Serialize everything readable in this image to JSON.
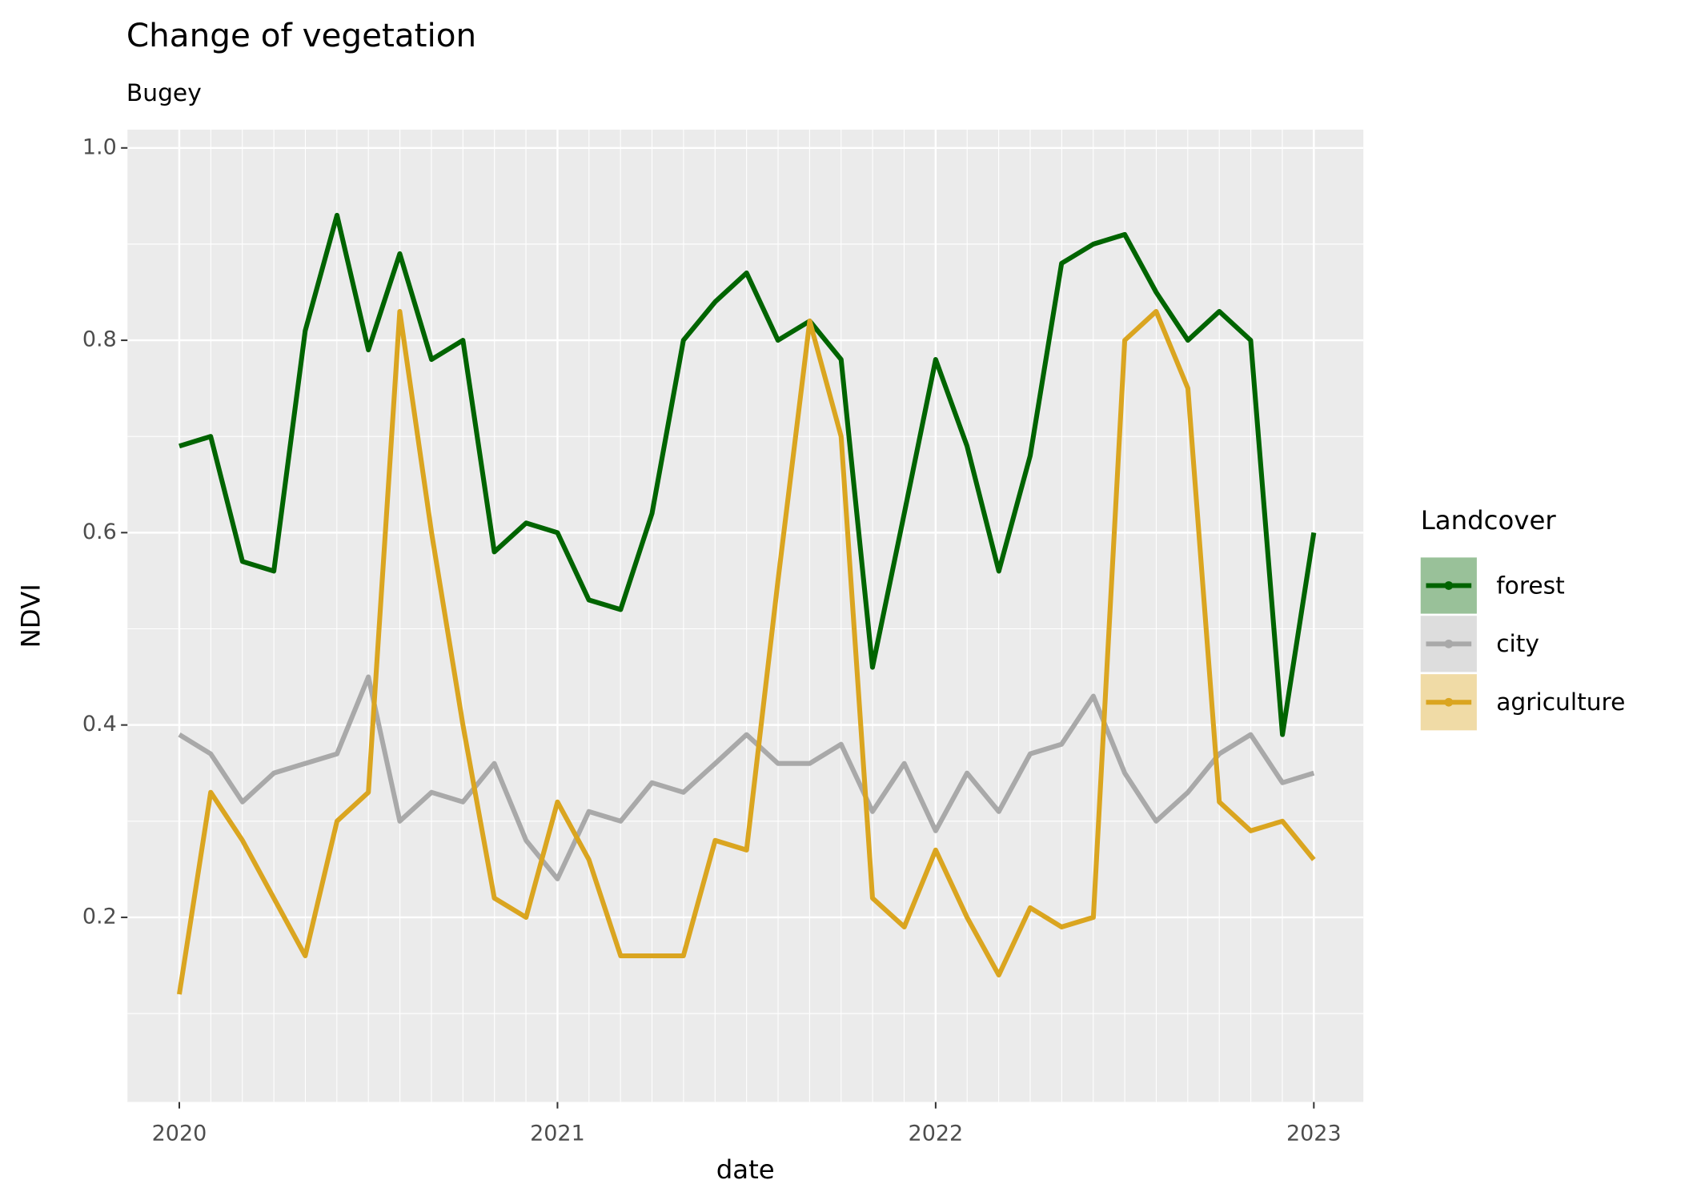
{
  "chart_data": {
    "type": "line",
    "title": "Change of vegetation",
    "subtitle": "Bugey",
    "x_label": "date",
    "y_label": "NDVI",
    "legend_title": "Landcover",
    "legend_position": "right",
    "grid": true,
    "x": [
      2020,
      2020.083,
      2020.167,
      2020.25,
      2020.333,
      2020.417,
      2020.5,
      2020.583,
      2020.667,
      2020.75,
      2020.833,
      2020.917,
      2021,
      2021.083,
      2021.167,
      2021.25,
      2021.333,
      2021.417,
      2021.5,
      2021.583,
      2021.667,
      2021.75,
      2021.833,
      2021.917,
      2022,
      2022.083,
      2022.167,
      2022.25,
      2022.333,
      2022.417,
      2022.5,
      2022.583,
      2022.667,
      2022.75,
      2022.833,
      2022.917,
      2023
    ],
    "xlim": [
      2019.863,
      2023.131
    ],
    "xticks": [
      2020,
      2021,
      2022,
      2023
    ],
    "ylim": [
      0.008,
      1.019
    ],
    "yticks": [
      0.2,
      0.4,
      0.6,
      0.8,
      {
        "value": 1.0,
        "label": "1.0"
      }
    ],
    "series": [
      {
        "name": "forest",
        "color": "#006400",
        "values": [
          0.69,
          0.7,
          0.57,
          0.56,
          0.81,
          0.93,
          0.79,
          0.89,
          0.78,
          0.8,
          0.58,
          0.61,
          0.6,
          0.53,
          0.52,
          0.62,
          0.8,
          0.84,
          0.87,
          0.8,
          0.82,
          0.78,
          0.46,
          0.62,
          0.78,
          0.69,
          0.56,
          0.68,
          0.88,
          0.9,
          0.91,
          0.85,
          0.8,
          0.83,
          0.8,
          0.39,
          0.6
        ]
      },
      {
        "name": "city",
        "color": "#a9a9a9",
        "values": [
          0.39,
          0.37,
          0.32,
          0.35,
          0.36,
          0.37,
          0.45,
          0.3,
          0.33,
          0.32,
          0.36,
          0.28,
          0.24,
          0.31,
          0.3,
          0.34,
          0.33,
          0.36,
          0.39,
          0.36,
          0.36,
          0.38,
          0.31,
          0.36,
          0.29,
          0.35,
          0.31,
          0.37,
          0.38,
          0.43,
          0.35,
          0.3,
          0.33,
          0.37,
          0.39,
          0.34,
          0.35
        ]
      },
      {
        "name": "agriculture",
        "color": "#daa520",
        "values": [
          0.12,
          0.33,
          0.28,
          0.22,
          0.16,
          0.3,
          0.33,
          0.83,
          0.6,
          0.4,
          0.22,
          0.2,
          0.32,
          0.26,
          0.16,
          0.16,
          0.16,
          0.28,
          0.27,
          0.55,
          0.82,
          0.7,
          0.22,
          0.19,
          0.27,
          0.2,
          0.14,
          0.21,
          0.19,
          0.2,
          0.8,
          0.83,
          0.75,
          0.32,
          0.29,
          0.3,
          0.26
        ]
      }
    ]
  }
}
